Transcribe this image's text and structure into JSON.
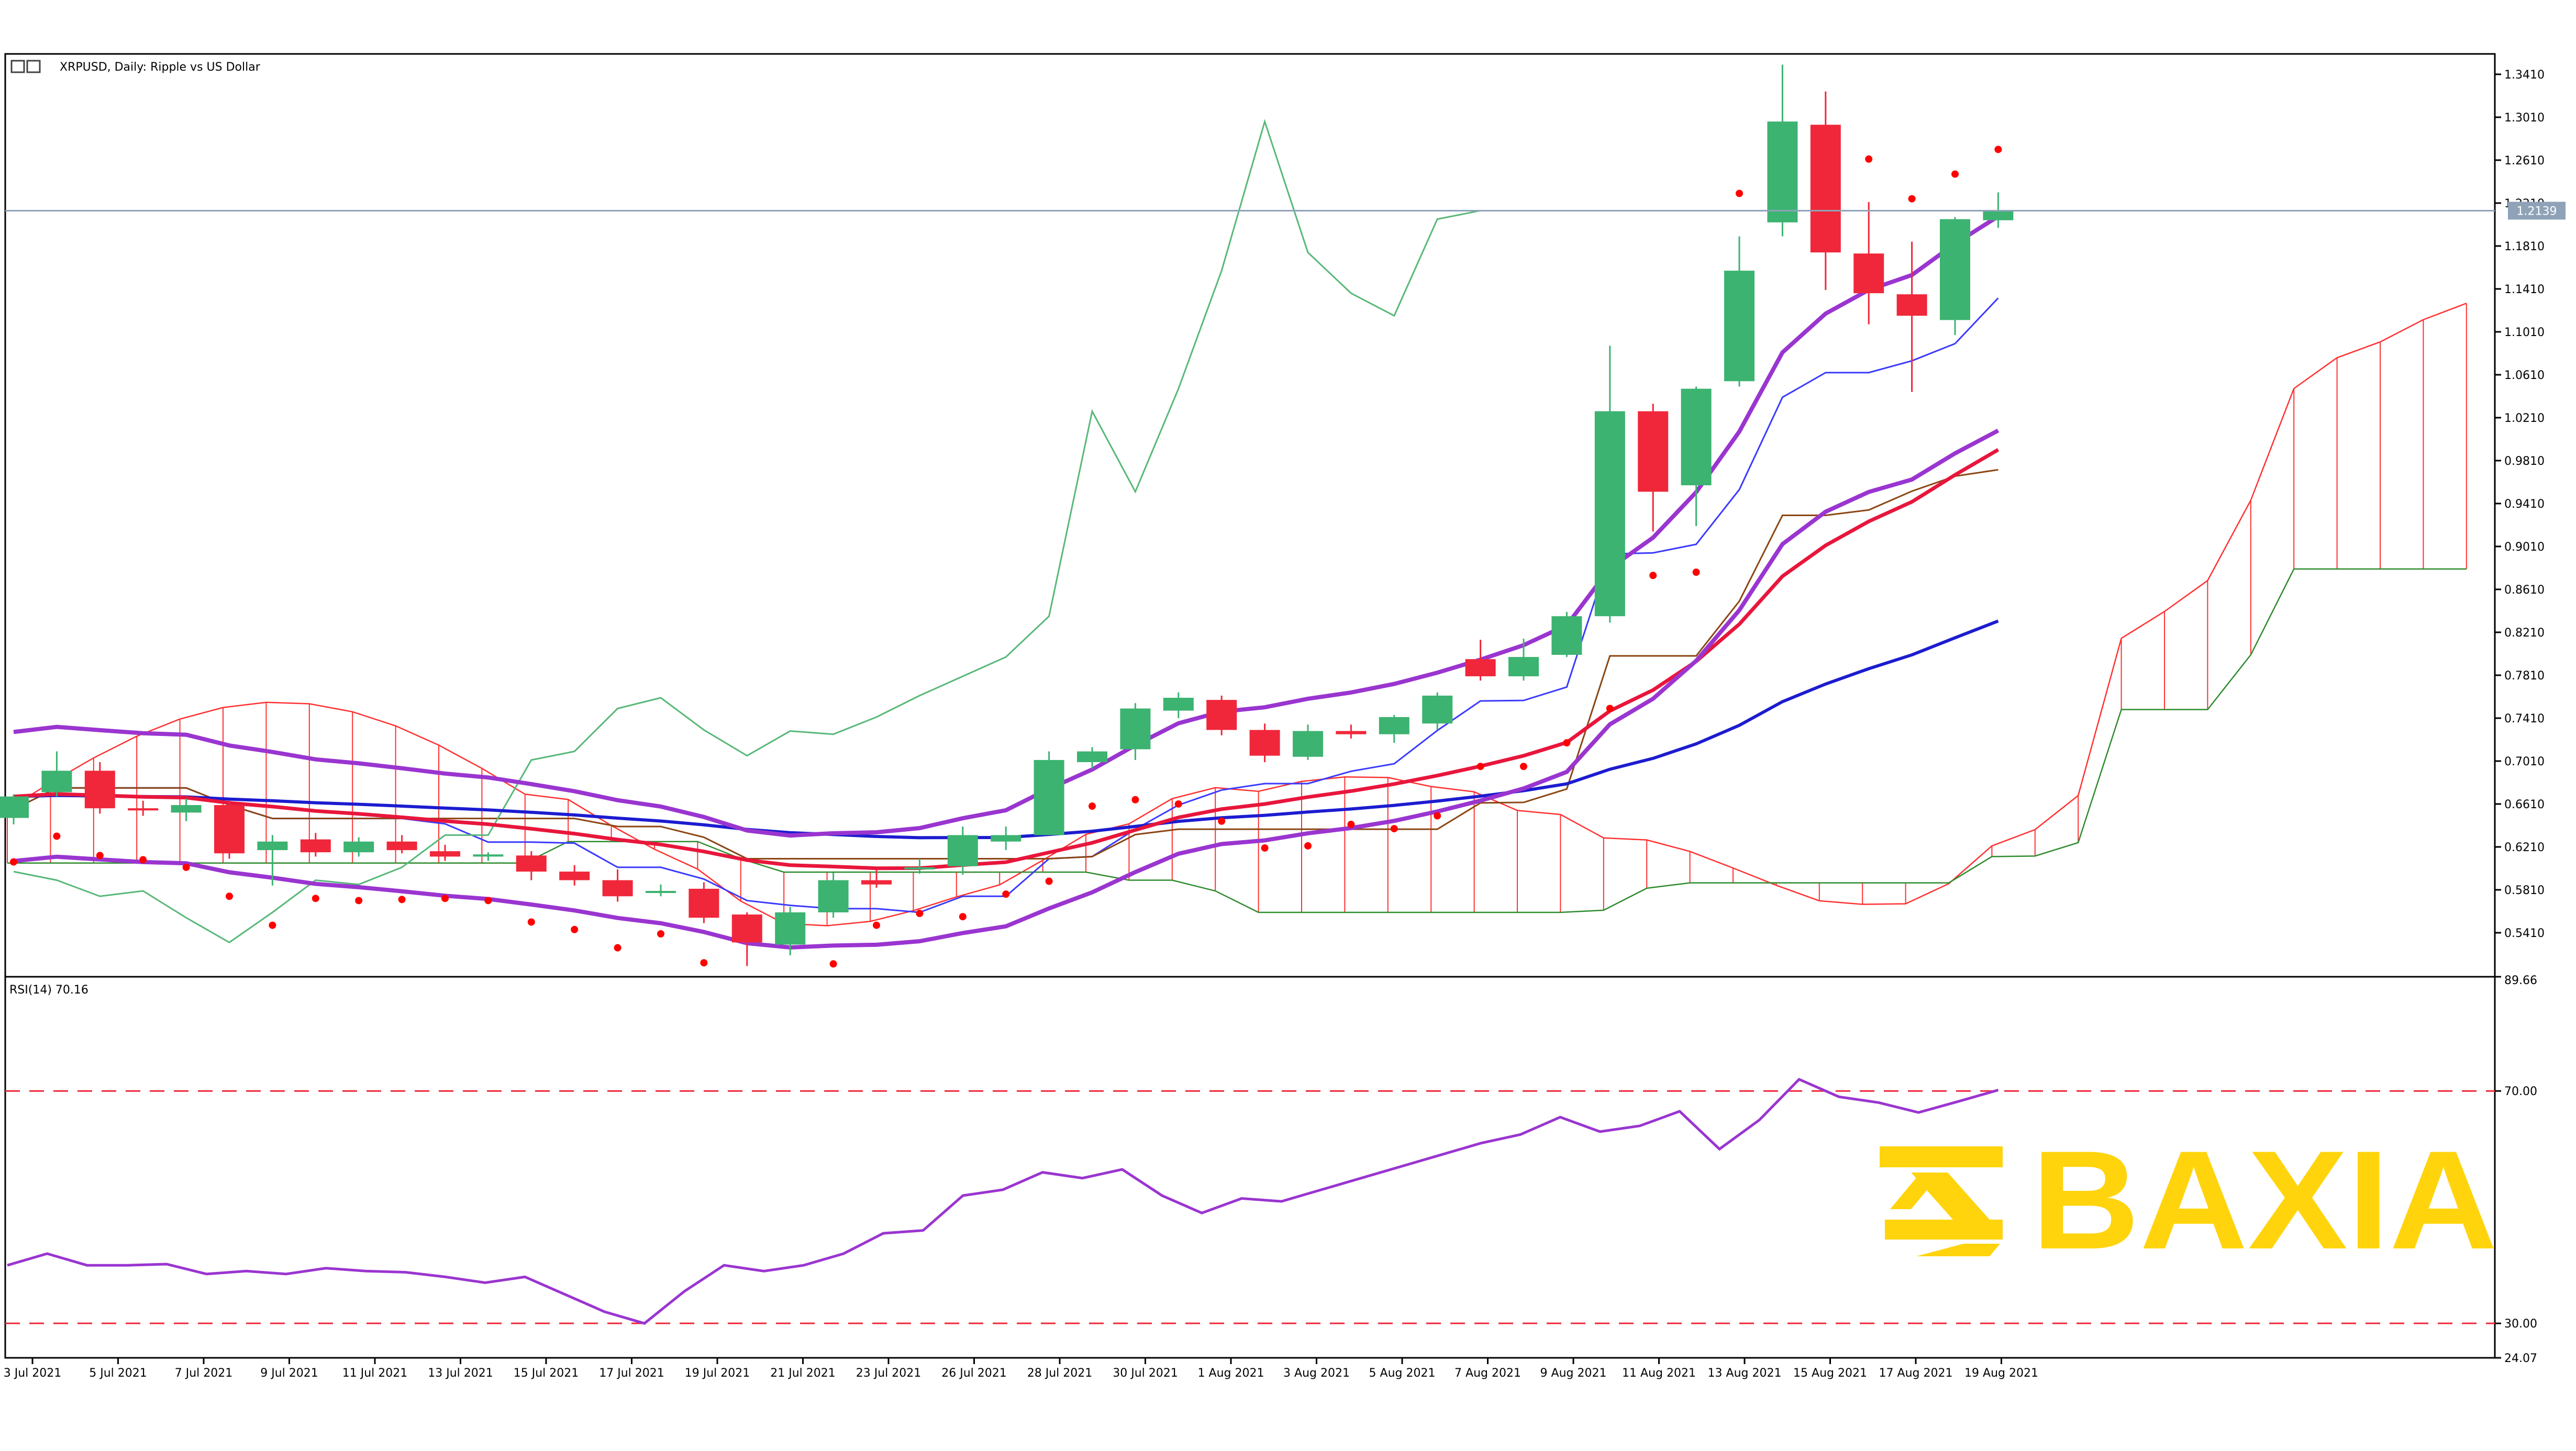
{
  "chart_data": [
    {
      "type": "candlestick",
      "title": "XRPUSD, Daily:  Ripple vs US Dollar",
      "price_axis": [
        "1.3410",
        "1.3010",
        "1.2610",
        "1.2210",
        "1.1810",
        "1.1410",
        "1.1010",
        "1.0610",
        "1.0210",
        "0.9810",
        "0.9410",
        "0.9010",
        "0.8610",
        "0.8210",
        "0.7810",
        "0.7410",
        "0.7010",
        "0.6610",
        "0.6210",
        "0.5810",
        "0.5410"
      ],
      "ylim": [
        0.5,
        1.36
      ],
      "current_price": "1.2139",
      "dates": [
        "3 Jul 2021",
        "5 Jul 2021",
        "7 Jul 2021",
        "9 Jul 2021",
        "11 Jul 2021",
        "13 Jul 2021",
        "15 Jul 2021",
        "17 Jul 2021",
        "19 Jul 2021",
        "21 Jul 2021",
        "23 Jul 2021",
        "26 Jul 2021",
        "28 Jul 2021",
        "30 Jul 2021",
        "1 Aug 2021",
        "3 Aug 2021",
        "5 Aug 2021",
        "7 Aug 2021",
        "9 Aug 2021",
        "11 Aug 2021",
        "13 Aug 2021",
        "15 Aug 2021",
        "17 Aug 2021",
        "19 Aug 2021"
      ],
      "candles": [
        {
          "o": 0.648,
          "h": 0.67,
          "l": 0.642,
          "c": 0.668
        },
        {
          "o": 0.672,
          "h": 0.71,
          "l": 0.668,
          "c": 0.692
        },
        {
          "o": 0.692,
          "h": 0.7,
          "l": 0.652,
          "c": 0.657
        },
        {
          "o": 0.657,
          "h": 0.664,
          "l": 0.65,
          "c": 0.655
        },
        {
          "o": 0.653,
          "h": 0.666,
          "l": 0.645,
          "c": 0.66
        },
        {
          "o": 0.66,
          "h": 0.664,
          "l": 0.61,
          "c": 0.615
        },
        {
          "o": 0.618,
          "h": 0.632,
          "l": 0.585,
          "c": 0.626
        },
        {
          "o": 0.628,
          "h": 0.634,
          "l": 0.612,
          "c": 0.616
        },
        {
          "o": 0.616,
          "h": 0.63,
          "l": 0.612,
          "c": 0.626
        },
        {
          "o": 0.626,
          "h": 0.632,
          "l": 0.615,
          "c": 0.618
        },
        {
          "o": 0.617,
          "h": 0.623,
          "l": 0.608,
          "c": 0.612
        },
        {
          "o": 0.612,
          "h": 0.616,
          "l": 0.608,
          "c": 0.614
        },
        {
          "o": 0.613,
          "h": 0.617,
          "l": 0.59,
          "c": 0.598
        },
        {
          "o": 0.598,
          "h": 0.604,
          "l": 0.585,
          "c": 0.59
        },
        {
          "o": 0.59,
          "h": 0.6,
          "l": 0.57,
          "c": 0.575
        },
        {
          "o": 0.58,
          "h": 0.586,
          "l": 0.575,
          "c": 0.58
        },
        {
          "o": 0.582,
          "h": 0.588,
          "l": 0.55,
          "c": 0.555
        },
        {
          "o": 0.558,
          "h": 0.56,
          "l": 0.51,
          "c": 0.532
        },
        {
          "o": 0.53,
          "h": 0.565,
          "l": 0.52,
          "c": 0.56
        },
        {
          "o": 0.56,
          "h": 0.597,
          "l": 0.555,
          "c": 0.59
        },
        {
          "o": 0.59,
          "h": 0.6,
          "l": 0.583,
          "c": 0.586
        },
        {
          "o": 0.6,
          "h": 0.61,
          "l": 0.596,
          "c": 0.602
        },
        {
          "o": 0.603,
          "h": 0.64,
          "l": 0.595,
          "c": 0.632
        },
        {
          "o": 0.626,
          "h": 0.64,
          "l": 0.618,
          "c": 0.632
        },
        {
          "o": 0.632,
          "h": 0.71,
          "l": 0.632,
          "c": 0.702
        },
        {
          "o": 0.7,
          "h": 0.714,
          "l": 0.694,
          "c": 0.71
        },
        {
          "o": 0.712,
          "h": 0.755,
          "l": 0.702,
          "c": 0.75
        },
        {
          "o": 0.748,
          "h": 0.765,
          "l": 0.741,
          "c": 0.76
        },
        {
          "o": 0.758,
          "h": 0.762,
          "l": 0.725,
          "c": 0.73
        },
        {
          "o": 0.73,
          "h": 0.736,
          "l": 0.7,
          "c": 0.706
        },
        {
          "o": 0.705,
          "h": 0.735,
          "l": 0.702,
          "c": 0.729
        },
        {
          "o": 0.729,
          "h": 0.735,
          "l": 0.722,
          "c": 0.726
        },
        {
          "o": 0.726,
          "h": 0.744,
          "l": 0.718,
          "c": 0.742
        },
        {
          "o": 0.736,
          "h": 0.765,
          "l": 0.73,
          "c": 0.762
        },
        {
          "o": 0.796,
          "h": 0.814,
          "l": 0.776,
          "c": 0.78
        },
        {
          "o": 0.78,
          "h": 0.815,
          "l": 0.776,
          "c": 0.798
        },
        {
          "o": 0.8,
          "h": 0.84,
          "l": 0.798,
          "c": 0.836
        },
        {
          "o": 0.836,
          "h": 1.088,
          "l": 0.83,
          "c": 1.027
        },
        {
          "o": 1.027,
          "h": 1.034,
          "l": 0.915,
          "c": 0.952
        },
        {
          "o": 0.958,
          "h": 1.05,
          "l": 0.92,
          "c": 1.048
        },
        {
          "o": 1.055,
          "h": 1.19,
          "l": 1.05,
          "c": 1.158
        },
        {
          "o": 1.203,
          "h": 1.35,
          "l": 1.19,
          "c": 1.297
        },
        {
          "o": 1.294,
          "h": 1.325,
          "l": 1.14,
          "c": 1.175
        },
        {
          "o": 1.174,
          "h": 1.222,
          "l": 1.108,
          "c": 1.137
        },
        {
          "o": 1.136,
          "h": 1.185,
          "l": 1.045,
          "c": 1.116
        },
        {
          "o": 1.112,
          "h": 1.208,
          "l": 1.098,
          "c": 1.206
        },
        {
          "o": 1.205,
          "h": 1.231,
          "l": 1.198,
          "c": 1.214
        }
      ],
      "colors": {
        "bull": "#3cb371",
        "bear": "#f0273a",
        "cloud": "#ff3030",
        "senkou_b": "#2e8b2e",
        "ma_fast": "#e8163c",
        "ma_slow": "#1c1cd0",
        "envelope": "#9a35d0",
        "psar": "#ff0000",
        "kijun": "#8b4513",
        "tenkan": "#3a3aff",
        "chikou": "#58b878"
      }
    },
    {
      "type": "line",
      "title": "RSI(14) 70.16",
      "ylim": [
        24.07,
        89.66
      ],
      "y_labels": [
        "89.66",
        "70.00",
        "30.00",
        "24.07"
      ],
      "levels": [
        70,
        30
      ],
      "values": [
        40,
        42,
        40,
        40,
        40.2,
        38.5,
        39,
        38.5,
        39.5,
        39,
        38.8,
        38,
        37,
        38,
        35,
        32,
        30,
        35.5,
        40,
        39,
        40,
        42,
        45.5,
        46,
        52,
        53,
        56,
        55,
        56.5,
        52,
        49,
        51.5,
        51,
        53,
        55,
        57,
        59,
        61,
        62.5,
        65.5,
        63,
        64,
        66.5,
        60,
        65,
        72,
        69,
        68,
        66.3,
        68.2,
        70.16
      ],
      "color": "#9a35d0"
    }
  ],
  "watermark": "BAXIA"
}
